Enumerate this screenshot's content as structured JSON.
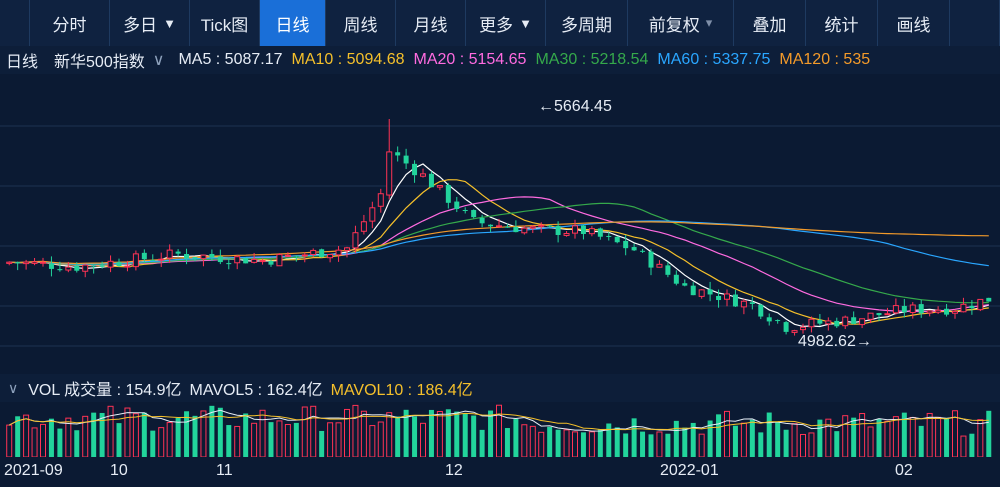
{
  "toolbar": {
    "items": [
      {
        "label": "分时",
        "width": 80,
        "arrow": ""
      },
      {
        "label": "多日",
        "width": 80,
        "arrow": "▼"
      },
      {
        "label": "Tick图",
        "width": 70,
        "arrow": ""
      },
      {
        "label": "日线",
        "width": 66,
        "arrow": "",
        "active": true
      },
      {
        "label": "周线",
        "width": 70,
        "arrow": ""
      },
      {
        "label": "月线",
        "width": 70,
        "arrow": ""
      },
      {
        "label": "更多",
        "width": 80,
        "arrow": "▼"
      },
      {
        "label": "多周期",
        "width": 82,
        "arrow": ""
      },
      {
        "label": "前复权",
        "width": 106,
        "arrow": "▾"
      },
      {
        "label": "叠加",
        "width": 72,
        "arrow": ""
      },
      {
        "label": "统计",
        "width": 72,
        "arrow": ""
      },
      {
        "label": "画线",
        "width": 72,
        "arrow": ""
      },
      {
        "label": "",
        "width": 50,
        "arrow": ""
      }
    ]
  },
  "infobar": {
    "period": "日线",
    "index_name": "新华500指数",
    "ma5": "MA5 : 5087.17",
    "ma10": "MA10 : 5094.68",
    "ma20": "MA20 : 5154.65",
    "ma30": "MA30 : 5218.54",
    "ma60": "MA60 : 5337.75",
    "ma120": "MA120 : 535"
  },
  "volbar": {
    "label": "VOL 成交量 : 154.9亿",
    "mavol5": "MAVOL5 : 162.4亿",
    "mavol10": "MAVOL10 : 186.4亿"
  },
  "colors": {
    "up": "#ff3355",
    "down": "#22d49c",
    "ma5": "#ffffff",
    "ma10": "#f5c02b",
    "ma20": "#ff6be0",
    "ma30": "#35a94b",
    "ma60": "#2aa6ff",
    "ma120": "#f39a2a"
  },
  "chart_data": {
    "type": "candlestick",
    "high_label": "←5664.45",
    "low_label": "4982.62→",
    "high": 5664.45,
    "low": 4982.62,
    "x_tick_labels": [
      "2021-09",
      "10",
      "11",
      "12",
      "2022-01",
      "02"
    ]
  }
}
